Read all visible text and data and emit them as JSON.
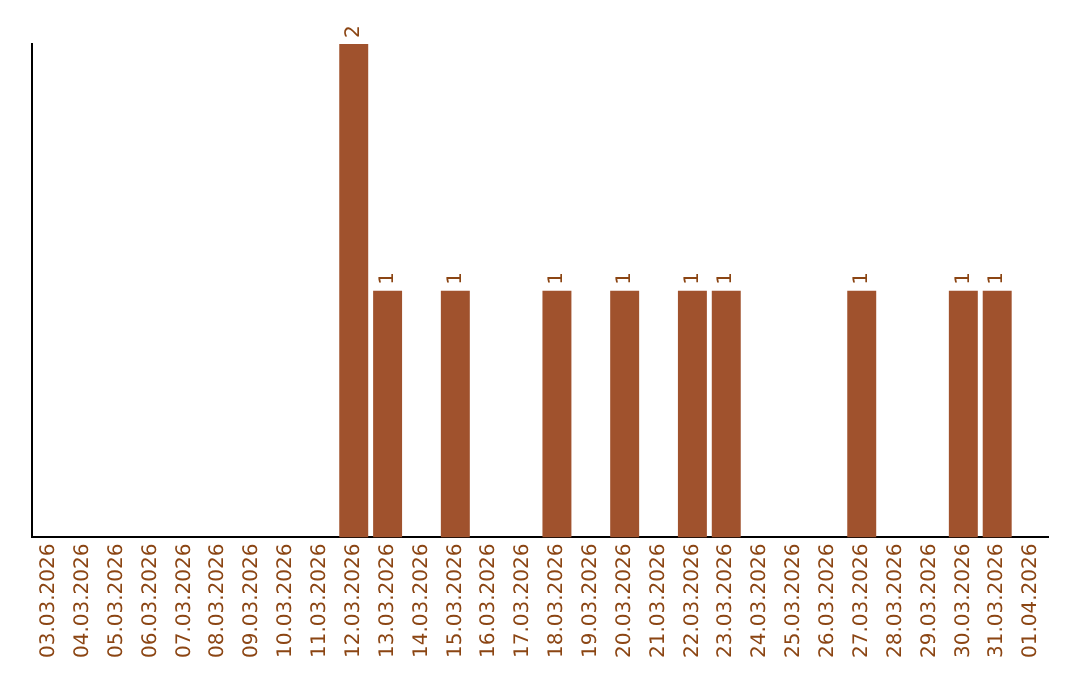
{
  "chart_data": {
    "type": "bar",
    "categories": [
      "03.03.2026",
      "04.03.2026",
      "05.03.2026",
      "06.03.2026",
      "07.03.2026",
      "08.03.2026",
      "09.03.2026",
      "10.03.2026",
      "11.03.2026",
      "12.03.2026",
      "13.03.2026",
      "14.03.2026",
      "15.03.2026",
      "16.03.2026",
      "17.03.2026",
      "18.03.2026",
      "19.03.2026",
      "20.03.2026",
      "21.03.2026",
      "22.03.2026",
      "23.03.2026",
      "24.03.2026",
      "25.03.2026",
      "26.03.2026",
      "27.03.2026",
      "28.03.2026",
      "29.03.2026",
      "30.03.2026",
      "31.03.2026",
      "01.04.2026"
    ],
    "values": [
      0,
      0,
      0,
      0,
      0,
      0,
      0,
      0,
      0,
      2,
      1,
      0,
      1,
      0,
      0,
      1,
      0,
      1,
      0,
      1,
      1,
      0,
      0,
      0,
      1,
      0,
      0,
      1,
      1,
      0
    ],
    "value_labels": [
      null,
      null,
      null,
      null,
      null,
      null,
      null,
      null,
      null,
      "2",
      "1",
      null,
      "1",
      null,
      null,
      "1",
      null,
      "1",
      null,
      "1",
      "1",
      null,
      null,
      null,
      "1",
      null,
      null,
      "1",
      "1",
      null
    ],
    "color": "#a0522d",
    "grid": false,
    "legend": false,
    "tick_labels": "x"
  }
}
